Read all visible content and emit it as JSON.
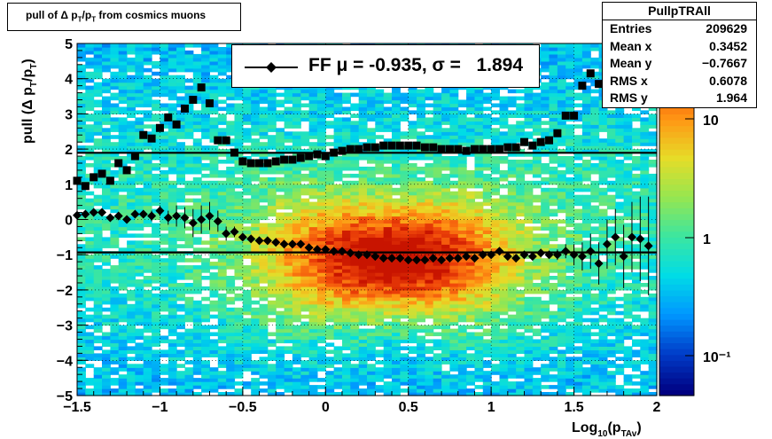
{
  "title": "pull of Δ p_T/p_T from cosmics muons",
  "stats": {
    "name": "PullpTRAll",
    "rows": [
      {
        "label": "Entries",
        "value": "209629"
      },
      {
        "label": "Mean x",
        "value": "0.3452"
      },
      {
        "label": "Mean y",
        "value": "−0.7667"
      },
      {
        "label": "RMS x",
        "value": "0.6078"
      },
      {
        "label": "RMS y",
        "value": "1.964"
      }
    ]
  },
  "legend": {
    "text": "FF μ = -0.935, σ =   1.894"
  },
  "colors": {
    "fit_line": "#000000",
    "markers": "#000000"
  },
  "chart_data": {
    "type": "heatmap",
    "xlabel": "Log10(pT Av)",
    "ylabel": "pull (Δ pT/pT)",
    "xlim": [
      -1.5,
      2
    ],
    "ylim": [
      -5,
      5
    ],
    "x_ticks": [
      "−1.5",
      "−1",
      "−0.5",
      "0",
      "0.5",
      "1",
      "1.5",
      "2"
    ],
    "y_ticks": [
      "5",
      "4",
      "3",
      "2",
      "1",
      "0",
      "−1",
      "−2",
      "−3",
      "−4",
      "−5"
    ],
    "z_scale": "log",
    "z_ticks": [
      "10",
      "1",
      "10⁻¹"
    ],
    "horizontal_lines": [
      1.894,
      -0.935
    ],
    "mean_profile": {
      "marker": "diamond",
      "points": [
        [
          -1.5,
          0.12
        ],
        [
          -1.45,
          0.15
        ],
        [
          -1.4,
          0.2
        ],
        [
          -1.35,
          0.2
        ],
        [
          -1.3,
          0.05
        ],
        [
          -1.25,
          0.1
        ],
        [
          -1.2,
          0.0
        ],
        [
          -1.15,
          0.15
        ],
        [
          -1.1,
          0.15
        ],
        [
          -1.05,
          0.1
        ],
        [
          -1.0,
          0.25
        ],
        [
          -0.95,
          0.05
        ],
        [
          -0.9,
          0.1
        ],
        [
          -0.85,
          0.05
        ],
        [
          -0.8,
          -0.1
        ],
        [
          -0.75,
          0.0
        ],
        [
          -0.7,
          0.1
        ],
        [
          -0.65,
          -0.05
        ],
        [
          -0.6,
          -0.4
        ],
        [
          -0.55,
          -0.35
        ],
        [
          -0.5,
          -0.5
        ],
        [
          -0.45,
          -0.55
        ],
        [
          -0.4,
          -0.6
        ],
        [
          -0.35,
          -0.6
        ],
        [
          -0.3,
          -0.65
        ],
        [
          -0.25,
          -0.7
        ],
        [
          -0.2,
          -0.7
        ],
        [
          -0.15,
          -0.7
        ],
        [
          -0.1,
          -0.8
        ],
        [
          -0.05,
          -0.85
        ],
        [
          0.0,
          -0.85
        ],
        [
          0.05,
          -0.9
        ],
        [
          0.1,
          -0.9
        ],
        [
          0.15,
          -0.95
        ],
        [
          0.2,
          -1.0
        ],
        [
          0.25,
          -1.0
        ],
        [
          0.3,
          -1.05
        ],
        [
          0.35,
          -1.1
        ],
        [
          0.4,
          -1.1
        ],
        [
          0.45,
          -1.1
        ],
        [
          0.5,
          -1.15
        ],
        [
          0.55,
          -1.15
        ],
        [
          0.6,
          -1.15
        ],
        [
          0.65,
          -1.1
        ],
        [
          0.7,
          -1.15
        ],
        [
          0.75,
          -1.1
        ],
        [
          0.8,
          -1.1
        ],
        [
          0.85,
          -1.05
        ],
        [
          0.9,
          -1.1
        ],
        [
          0.95,
          -1.0
        ],
        [
          1.0,
          -1.0
        ],
        [
          1.05,
          -0.9
        ],
        [
          1.1,
          -1.05
        ],
        [
          1.15,
          -1.1
        ],
        [
          1.2,
          -1.0
        ],
        [
          1.25,
          -1.05
        ],
        [
          1.3,
          -0.95
        ],
        [
          1.35,
          -1.0
        ],
        [
          1.4,
          -1.0
        ],
        [
          1.45,
          -0.9
        ],
        [
          1.5,
          -1.0
        ],
        [
          1.55,
          -1.05
        ],
        [
          1.6,
          -0.9
        ],
        [
          1.65,
          -1.25
        ],
        [
          1.7,
          -0.7
        ],
        [
          1.75,
          -0.5
        ],
        [
          1.8,
          -1.05
        ],
        [
          1.85,
          -0.5
        ],
        [
          1.9,
          -0.55
        ],
        [
          1.95,
          -0.75
        ]
      ],
      "errors": [
        0.1,
        0.1,
        0.1,
        0.1,
        0.1,
        0.1,
        0.1,
        0.1,
        0.1,
        0.15,
        0.15,
        0.2,
        0.3,
        0.3,
        0.4,
        0.4,
        0.4,
        0.3,
        0.2,
        0.15,
        0.1,
        0.08,
        0.05,
        0.05,
        0.05,
        0.05,
        0.05,
        0.05,
        0.05,
        0.05,
        0.05,
        0.05,
        0.05,
        0.05,
        0.05,
        0.05,
        0.05,
        0.05,
        0.05,
        0.05,
        0.05,
        0.05,
        0.05,
        0.05,
        0.05,
        0.05,
        0.05,
        0.05,
        0.05,
        0.05,
        0.05,
        0.05,
        0.05,
        0.05,
        0.05,
        0.05,
        0.08,
        0.1,
        0.15,
        0.2,
        0.3,
        0.4,
        0.5,
        0.6,
        0.7,
        0.8,
        0.9,
        1.0,
        1.2,
        1.4
      ]
    },
    "rms_profile": {
      "marker": "square",
      "points": [
        [
          -1.5,
          1.1
        ],
        [
          -1.45,
          0.95
        ],
        [
          -1.4,
          1.2
        ],
        [
          -1.35,
          1.3
        ],
        [
          -1.3,
          1.1
        ],
        [
          -1.25,
          1.6
        ],
        [
          -1.2,
          1.4
        ],
        [
          -1.15,
          1.8
        ],
        [
          -1.1,
          2.4
        ],
        [
          -1.05,
          2.3
        ],
        [
          -1.0,
          2.6
        ],
        [
          -0.95,
          2.9
        ],
        [
          -0.9,
          2.7
        ],
        [
          -0.85,
          3.15
        ],
        [
          -0.8,
          3.4
        ],
        [
          -0.75,
          3.75
        ],
        [
          -0.7,
          3.3
        ],
        [
          -0.65,
          2.25
        ],
        [
          -0.6,
          2.25
        ],
        [
          -0.55,
          1.9
        ],
        [
          -0.5,
          1.65
        ],
        [
          -0.45,
          1.6
        ],
        [
          -0.4,
          1.6
        ],
        [
          -0.35,
          1.6
        ],
        [
          -0.3,
          1.65
        ],
        [
          -0.25,
          1.7
        ],
        [
          -0.2,
          1.7
        ],
        [
          -0.15,
          1.75
        ],
        [
          -0.1,
          1.8
        ],
        [
          -0.05,
          1.85
        ],
        [
          0.0,
          1.8
        ],
        [
          0.05,
          1.9
        ],
        [
          0.1,
          1.95
        ],
        [
          0.15,
          2.0
        ],
        [
          0.2,
          2.0
        ],
        [
          0.25,
          2.05
        ],
        [
          0.3,
          2.05
        ],
        [
          0.35,
          2.1
        ],
        [
          0.4,
          2.1
        ],
        [
          0.45,
          2.1
        ],
        [
          0.5,
          2.1
        ],
        [
          0.55,
          2.1
        ],
        [
          0.6,
          2.05
        ],
        [
          0.65,
          2.05
        ],
        [
          0.7,
          2.0
        ],
        [
          0.75,
          2.0
        ],
        [
          0.8,
          2.0
        ],
        [
          0.85,
          1.95
        ],
        [
          0.9,
          2.0
        ],
        [
          0.95,
          2.0
        ],
        [
          1.0,
          2.0
        ],
        [
          1.05,
          2.0
        ],
        [
          1.1,
          2.05
        ],
        [
          1.15,
          2.05
        ],
        [
          1.2,
          2.2
        ],
        [
          1.25,
          2.1
        ],
        [
          1.3,
          2.2
        ],
        [
          1.35,
          2.25
        ],
        [
          1.4,
          2.45
        ],
        [
          1.45,
          2.95
        ],
        [
          1.5,
          2.95
        ],
        [
          1.55,
          3.8
        ],
        [
          1.6,
          4.15
        ],
        [
          1.65,
          3.85
        ],
        [
          1.7,
          3.95
        ],
        [
          1.75,
          4.6
        ]
      ]
    }
  }
}
